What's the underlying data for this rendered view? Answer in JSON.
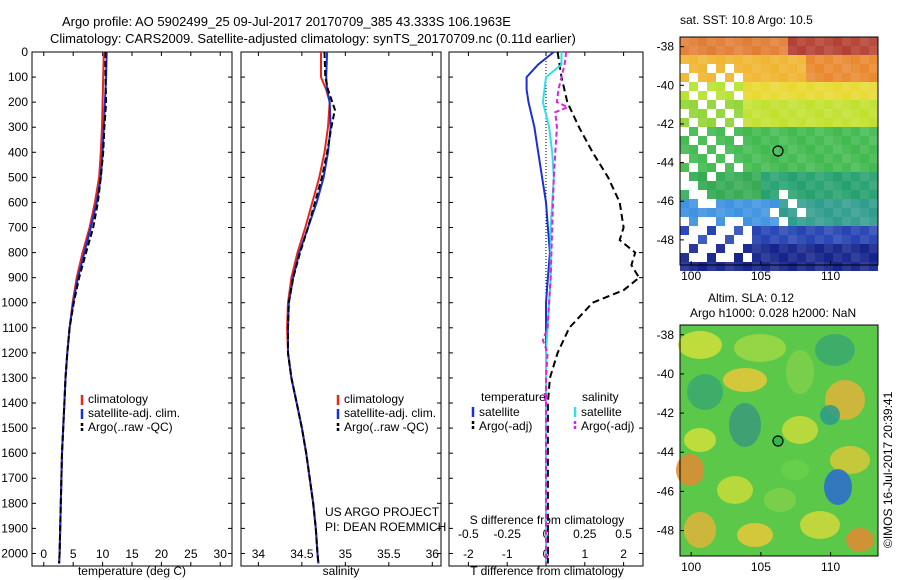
{
  "header": {
    "line1": "Argo profile: AO 5902499_25 09-Jul-2017 20170709_385 43.333S 106.1963E",
    "line2": "Climatology: CARS2009. Satellite-adjusted climatology: synTS_20170709.nc (0.11d earlier)"
  },
  "credit": {
    "project": "US ARGO PROJECT",
    "pi": "PI: DEAN ROEMMICH",
    "imos": "©IMOS 16-Jul-2017 20:39:41"
  },
  "colors": {
    "climatology": "#e8241e",
    "satellite": "#1a2fd6",
    "argo": "#000000",
    "satellite_s": "#2fe0e6",
    "argo_s": "#e020e0"
  },
  "map_sst": {
    "title": "sat. SST: 10.8  Argo: 10.5",
    "yticks": [
      "-38",
      "-40",
      "-42",
      "-44",
      "-46",
      "-48"
    ],
    "xticks": [
      "100",
      "105",
      "110"
    ]
  },
  "map_sla": {
    "title1": "Altim. SLA: 0.12",
    "title2": "Argo h1000: 0.028  h2000: NaN",
    "yticks": [
      "-38",
      "-40",
      "-42",
      "-44",
      "-46",
      "-48"
    ],
    "xticks": [
      "100",
      "105",
      "110"
    ]
  },
  "chart_data": [
    {
      "type": "line",
      "xlabel": "temperature (deg C)",
      "ylabel": "",
      "xlim": [
        -2,
        32
      ],
      "ylim": [
        2050,
        0
      ],
      "xticks": [
        "0",
        "5",
        "10",
        "15",
        "20",
        "25",
        "30"
      ],
      "yticks": [
        "0",
        "100",
        "200",
        "300",
        "400",
        "500",
        "600",
        "700",
        "800",
        "900",
        "1000",
        "1100",
        "1200",
        "1300",
        "1400",
        "1500",
        "1600",
        "1700",
        "1800",
        "1900",
        "2000"
      ],
      "legend": [
        "climatology",
        "satellite-adj. clim.",
        "Argo(..raw -QC)"
      ],
      "series": [
        {
          "name": "climatology",
          "y": [
            0,
            100,
            200,
            300,
            400,
            500,
            600,
            700,
            800,
            900,
            1000,
            1100,
            1200,
            1300,
            1400,
            1500,
            1600,
            1700,
            1800,
            1900,
            2000,
            2040
          ],
          "x": [
            10.2,
            10.1,
            10.0,
            9.9,
            9.7,
            9.4,
            8.7,
            7.8,
            6.6,
            5.6,
            4.9,
            4.4,
            4.0,
            3.7,
            3.5,
            3.3,
            3.1,
            3.0,
            2.9,
            2.8,
            2.7,
            2.6
          ]
        },
        {
          "name": "satellite-adj. clim.",
          "y": [
            0,
            100,
            200,
            300,
            400,
            500,
            600,
            700,
            800,
            900,
            1000,
            1100,
            1200,
            1300,
            1400,
            1500,
            1600,
            1700,
            1800,
            1900,
            2000,
            2040
          ],
          "x": [
            10.7,
            10.6,
            10.4,
            10.2,
            10.0,
            9.7,
            9.0,
            8.0,
            6.9,
            5.8,
            5.0,
            4.4,
            4.0,
            3.7,
            3.5,
            3.3,
            3.1,
            3.0,
            2.9,
            2.8,
            2.7,
            2.6
          ]
        },
        {
          "name": "Argo(..raw -QC)",
          "y": [
            0,
            100,
            200,
            300,
            400,
            500,
            600,
            700,
            800,
            900,
            1000,
            1100,
            1200,
            1300,
            1400,
            1500,
            1600,
            1700,
            1800,
            1900,
            2000,
            2040
          ],
          "x": [
            10.5,
            10.5,
            10.6,
            10.3,
            10.1,
            9.7,
            9.2,
            8.4,
            7.2,
            6.0,
            5.1,
            4.4,
            4.0,
            3.7,
            3.5,
            3.3,
            3.1,
            3.0,
            2.9,
            2.8,
            2.7,
            2.6
          ]
        }
      ]
    },
    {
      "type": "line",
      "xlabel": "salinity",
      "ylabel": "",
      "xlim": [
        33.8,
        36.1
      ],
      "ylim": [
        2050,
        0
      ],
      "xticks": [
        "34",
        "34.5",
        "35",
        "35.5",
        "36"
      ],
      "legend": [
        "climatology",
        "satellite-adj. clim.",
        "Argo(..raw -QC)"
      ],
      "series": [
        {
          "name": "climatology",
          "y": [
            0,
            100,
            150,
            200,
            300,
            400,
            500,
            600,
            700,
            800,
            900,
            1000,
            1100,
            1200,
            1300,
            1400,
            1500,
            1600,
            1700,
            1800,
            1900,
            2000,
            2040
          ],
          "x": [
            34.72,
            34.72,
            34.78,
            34.82,
            34.8,
            34.76,
            34.7,
            34.62,
            34.54,
            34.45,
            34.38,
            34.34,
            34.33,
            34.34,
            34.38,
            34.44,
            34.5,
            34.55,
            34.59,
            34.63,
            34.66,
            34.68,
            34.69
          ]
        },
        {
          "name": "satellite-adj. clim.",
          "y": [
            0,
            100,
            150,
            200,
            300,
            400,
            500,
            600,
            700,
            800,
            900,
            1000,
            1100,
            1200,
            1300,
            1400,
            1500,
            1600,
            1700,
            1800,
            1900,
            2000,
            2040
          ],
          "x": [
            34.79,
            34.78,
            34.79,
            34.82,
            34.83,
            34.8,
            34.75,
            34.67,
            34.57,
            34.47,
            34.4,
            34.35,
            34.34,
            34.34,
            34.38,
            34.44,
            34.5,
            34.55,
            34.59,
            34.63,
            34.66,
            34.68,
            34.69
          ]
        },
        {
          "name": "Argo(..raw -QC)",
          "y": [
            0,
            100,
            150,
            200,
            230,
            300,
            400,
            500,
            600,
            700,
            800,
            900,
            1000,
            1100,
            1200,
            1300,
            1400,
            1500,
            1600,
            1700,
            1800,
            1900,
            2000,
            2040
          ],
          "x": [
            34.76,
            34.77,
            34.8,
            34.85,
            34.88,
            34.84,
            34.79,
            34.73,
            34.65,
            34.57,
            34.48,
            34.4,
            34.35,
            34.34,
            34.34,
            34.38,
            34.44,
            34.5,
            34.55,
            34.59,
            34.63,
            34.66,
            34.68,
            34.69
          ]
        }
      ]
    },
    {
      "type": "line",
      "xlabel": "T difference from climatology",
      "x2label": "S difference from climatology",
      "xlim": [
        -2.5,
        2.5
      ],
      "x2lim": [
        -0.625,
        0.625
      ],
      "ylim": [
        2050,
        0
      ],
      "xticks": [
        "-2",
        "-1",
        "0",
        "1",
        "2"
      ],
      "x2ticks": [
        "-0.5",
        "-0.25",
        "0",
        "0.25",
        "0.5"
      ],
      "legend": {
        "temperature": "temperature",
        "salinity": "salinity",
        "satellite": "satellite",
        "argo": "Argo(-adj)"
      },
      "series": [
        {
          "name": "T satellite",
          "y": [
            0,
            50,
            100,
            150,
            200,
            300,
            400,
            500,
            600,
            700,
            800,
            900,
            1000,
            1100,
            1200,
            1300,
            1400,
            1500,
            1700,
            1900,
            2040
          ],
          "x": [
            0.2,
            -0.2,
            -0.5,
            -0.5,
            -0.45,
            -0.3,
            -0.2,
            -0.1,
            0.0,
            0.05,
            0.1,
            0.05,
            0.0,
            0.0,
            0.0,
            0.0,
            0.0,
            0.0,
            0.0,
            0.0,
            0.0
          ]
        },
        {
          "name": "T Argo(-adj)",
          "y": [
            0,
            100,
            200,
            300,
            400,
            500,
            600,
            700,
            750,
            800,
            850,
            900,
            950,
            1000,
            1100,
            1200,
            1300,
            1400,
            1500,
            1700,
            1900,
            2040
          ],
          "x": [
            0.3,
            0.4,
            0.55,
            0.85,
            1.2,
            1.6,
            1.9,
            2.0,
            1.9,
            2.3,
            2.2,
            2.4,
            2.0,
            1.2,
            0.6,
            0.3,
            0.1,
            0.05,
            0.05,
            0.05,
            0.05,
            0.05
          ]
        },
        {
          "name": "S satellite",
          "y": [
            0,
            50,
            100,
            200,
            300,
            400,
            500,
            600,
            700,
            800,
            900,
            1000,
            1100,
            1200,
            1400,
            1700,
            2040
          ],
          "x": [
            0.1,
            0.1,
            0.0,
            -0.02,
            0.02,
            0.04,
            0.05,
            0.04,
            0.03,
            0.03,
            0.03,
            0.02,
            0.01,
            0.0,
            0.0,
            0.0,
            0.0
          ]
        },
        {
          "name": "S Argo(-adj)",
          "y": [
            0,
            50,
            100,
            150,
            200,
            220,
            240,
            300,
            400,
            500,
            700,
            900,
            1000,
            1100,
            1150,
            1200,
            1300,
            1500,
            1700,
            1900,
            2040
          ],
          "x": [
            0.13,
            0.12,
            0.1,
            0.08,
            0.07,
            0.14,
            0.06,
            0.07,
            0.06,
            0.05,
            0.04,
            0.03,
            0.02,
            0.01,
            -0.02,
            0.01,
            0.0,
            0.0,
            0.0,
            0.0,
            0.0
          ]
        }
      ]
    }
  ]
}
